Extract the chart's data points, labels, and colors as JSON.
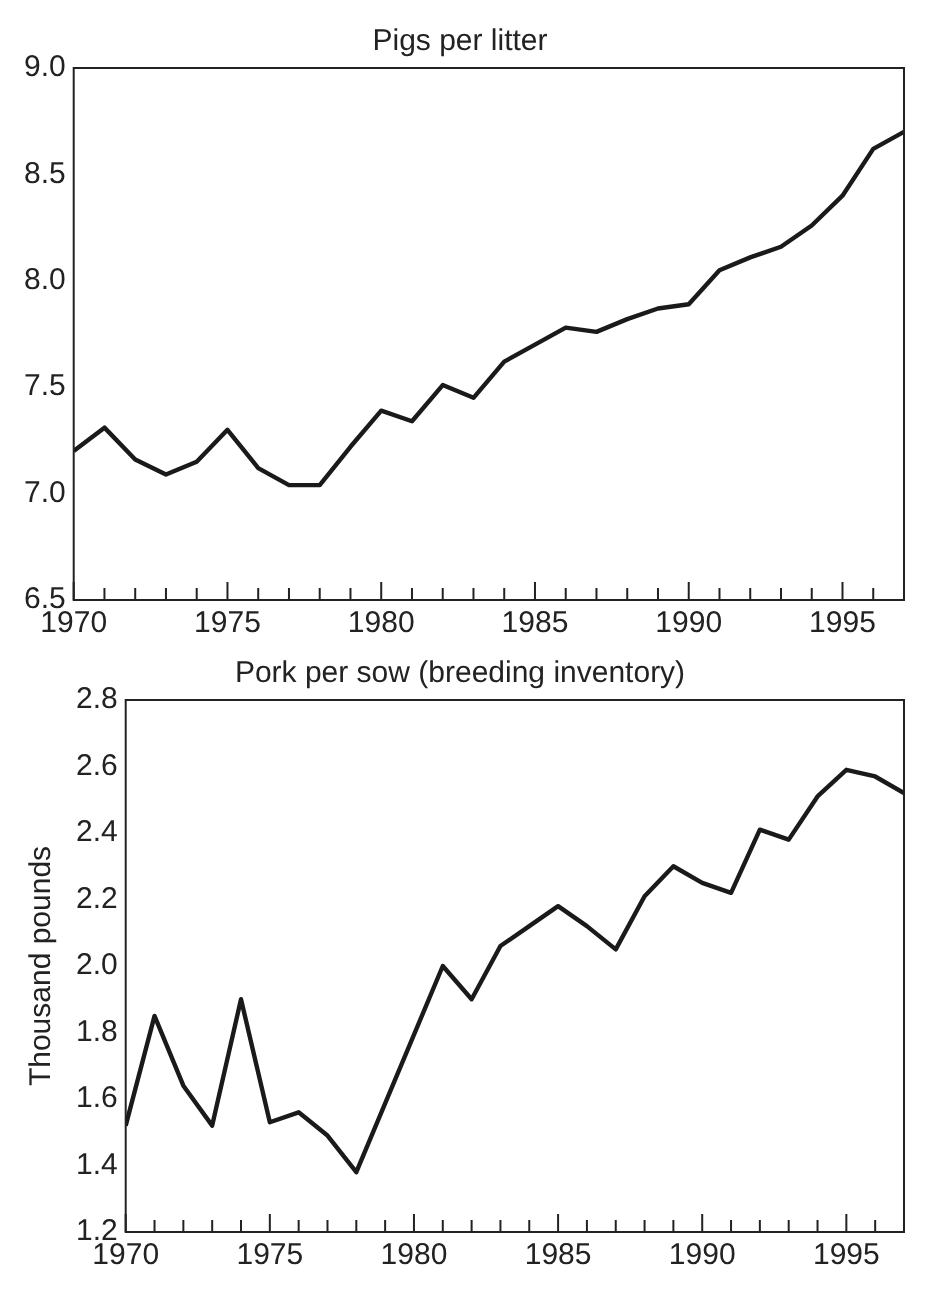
{
  "chart_data": [
    {
      "type": "line",
      "title": "Pigs per litter",
      "x": [
        1970,
        1971,
        1972,
        1973,
        1974,
        1975,
        1976,
        1977,
        1978,
        1979,
        1980,
        1981,
        1982,
        1983,
        1984,
        1985,
        1986,
        1987,
        1988,
        1989,
        1990,
        1991,
        1992,
        1993,
        1994,
        1995,
        1996,
        1997
      ],
      "series": [
        {
          "color": "#1a1a1a",
          "values": [
            7.2,
            7.31,
            7.16,
            7.09,
            7.15,
            7.3,
            7.12,
            7.04,
            7.04,
            7.22,
            7.39,
            7.34,
            7.51,
            7.45,
            7.62,
            7.7,
            7.78,
            7.76,
            7.82,
            7.87,
            7.89,
            8.05,
            8.11,
            8.16,
            8.26,
            8.4,
            8.62,
            8.7
          ]
        }
      ],
      "xlim": [
        1970,
        1997
      ],
      "xticks": [
        1970,
        {
          "value": 1971,
          "label": null
        },
        {
          "value": 1972,
          "label": null
        },
        {
          "value": 1973,
          "label": null
        },
        {
          "value": 1974,
          "label": null
        },
        1975,
        {
          "value": 1976,
          "label": null
        },
        {
          "value": 1977,
          "label": null
        },
        {
          "value": 1978,
          "label": null
        },
        {
          "value": 1979,
          "label": null
        },
        1980,
        {
          "value": 1981,
          "label": null
        },
        {
          "value": 1982,
          "label": null
        },
        {
          "value": 1983,
          "label": null
        },
        {
          "value": 1984,
          "label": null
        },
        1985,
        {
          "value": 1986,
          "label": null
        },
        {
          "value": 1987,
          "label": null
        },
        {
          "value": 1988,
          "label": null
        },
        {
          "value": 1989,
          "label": null
        },
        1990,
        {
          "value": 1991,
          "label": null
        },
        {
          "value": 1992,
          "label": null
        },
        {
          "value": 1993,
          "label": null
        },
        {
          "value": 1994,
          "label": null
        },
        1995,
        {
          "value": 1996,
          "label": null
        }
      ],
      "ylim": [
        6.5,
        9.0
      ],
      "yticks": [
        {
          "value": 6.5,
          "label": "6.5"
        },
        {
          "value": 7.0,
          "label": "7.0"
        },
        {
          "value": 7.5,
          "label": "7.5"
        },
        {
          "value": 8.0,
          "label": "8.0"
        },
        {
          "value": 8.5,
          "label": "8.5"
        },
        {
          "value": 9.0,
          "label": "9.0"
        }
      ],
      "grid": false,
      "legend": false,
      "marker": "none",
      "line_style": "solid"
    },
    {
      "type": "line",
      "title": "Pork per sow (breeding inventory)",
      "ylabel": "Thousand pounds",
      "x": [
        1970,
        1971,
        1972,
        1973,
        1974,
        1975,
        1976,
        1977,
        1978,
        1981,
        1982,
        1983,
        1984,
        1985,
        1986,
        1987,
        1988,
        1989,
        1990,
        1991,
        1992,
        1993,
        1994,
        1995,
        1996,
        1997
      ],
      "series": [
        {
          "color": "#1a1a1a",
          "values": [
            1.52,
            1.85,
            1.64,
            1.52,
            1.9,
            1.53,
            1.56,
            1.49,
            1.38,
            2.0,
            1.9,
            2.06,
            2.12,
            2.18,
            2.12,
            2.05,
            2.21,
            2.3,
            2.25,
            2.22,
            2.41,
            2.38,
            2.51,
            2.59,
            2.57,
            2.52
          ]
        }
      ],
      "xlim": [
        1970,
        1997
      ],
      "xticks": [
        1970,
        {
          "value": 1971,
          "label": null
        },
        {
          "value": 1972,
          "label": null
        },
        {
          "value": 1973,
          "label": null
        },
        {
          "value": 1974,
          "label": null
        },
        1975,
        {
          "value": 1976,
          "label": null
        },
        {
          "value": 1977,
          "label": null
        },
        {
          "value": 1978,
          "label": null
        },
        {
          "value": 1979,
          "label": null
        },
        1980,
        {
          "value": 1981,
          "label": null
        },
        {
          "value": 1982,
          "label": null
        },
        {
          "value": 1983,
          "label": null
        },
        {
          "value": 1984,
          "label": null
        },
        1985,
        {
          "value": 1986,
          "label": null
        },
        {
          "value": 1987,
          "label": null
        },
        {
          "value": 1988,
          "label": null
        },
        {
          "value": 1989,
          "label": null
        },
        1990,
        {
          "value": 1991,
          "label": null
        },
        {
          "value": 1992,
          "label": null
        },
        {
          "value": 1993,
          "label": null
        },
        {
          "value": 1994,
          "label": null
        },
        1995,
        {
          "value": 1996,
          "label": null
        }
      ],
      "ylim": [
        1.2,
        2.8
      ],
      "yticks": [
        {
          "value": 1.2,
          "label": "1.2"
        },
        {
          "value": 1.4,
          "label": "1.4"
        },
        {
          "value": 1.6,
          "label": "1.6"
        },
        {
          "value": 1.8,
          "label": "1.8"
        },
        {
          "value": 2.0,
          "label": "2.0"
        },
        {
          "value": 2.2,
          "label": "2.2"
        },
        {
          "value": 2.4,
          "label": "2.4"
        },
        {
          "value": 2.6,
          "label": "2.6"
        },
        {
          "value": 2.8,
          "label": "2.8"
        }
      ],
      "grid": false,
      "legend": false,
      "marker": "none",
      "line_style": "solid"
    }
  ]
}
